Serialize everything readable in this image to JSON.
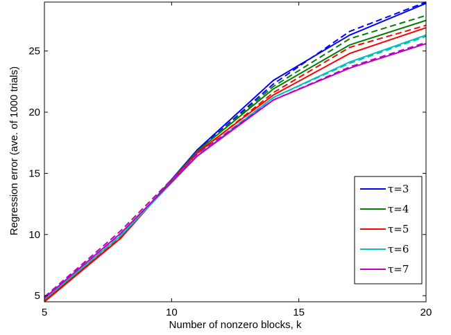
{
  "chart_data": {
    "type": "line",
    "title": "",
    "xlabel": "Number of nonzero blocks, k",
    "ylabel": "Regression error (ave. of 1000 trials)",
    "xlim": [
      5,
      20
    ],
    "ylim": [
      4.5,
      29
    ],
    "xticks": [
      5,
      10,
      15,
      20
    ],
    "yticks": [
      5,
      10,
      15,
      20,
      25
    ],
    "grid": false,
    "legend_position": "bottom-right",
    "x": [
      5,
      8,
      11,
      14,
      17,
      20
    ],
    "series": [
      {
        "name": "τ=3",
        "color": "#0000ff",
        "style": "solid",
        "values": [
          4.5,
          9.7,
          16.9,
          22.6,
          26.3,
          28.9
        ]
      },
      {
        "name": "τ=3",
        "color": "#0000ff",
        "style": "dashed",
        "values": [
          4.6,
          9.8,
          16.8,
          22.3,
          26.6,
          29.0
        ]
      },
      {
        "name": "τ=4",
        "color": "#008000",
        "style": "solid",
        "values": [
          4.6,
          9.7,
          16.8,
          21.9,
          25.5,
          27.5
        ]
      },
      {
        "name": "τ=4",
        "color": "#008000",
        "style": "dashed",
        "values": [
          4.6,
          9.8,
          16.8,
          22.1,
          26.0,
          27.9
        ]
      },
      {
        "name": "τ=5",
        "color": "#ff0000",
        "style": "solid",
        "values": [
          4.5,
          9.7,
          16.7,
          21.4,
          24.8,
          26.9
        ]
      },
      {
        "name": "τ=5",
        "color": "#ff0000",
        "style": "dashed",
        "values": [
          4.6,
          9.8,
          16.6,
          21.6,
          25.3,
          27.1
        ]
      },
      {
        "name": "τ=6",
        "color": "#00bfbf",
        "style": "solid",
        "values": [
          4.7,
          9.9,
          16.4,
          21.2,
          24.1,
          26.3
        ]
      },
      {
        "name": "τ=6",
        "color": "#00bfbf",
        "style": "dashed",
        "values": [
          4.8,
          10.0,
          16.5,
          21.2,
          24.0,
          26.2
        ]
      },
      {
        "name": "τ=7",
        "color": "#bf00bf",
        "style": "solid",
        "values": [
          4.8,
          10.1,
          16.4,
          21.0,
          23.6,
          25.6
        ]
      },
      {
        "name": "τ=7",
        "color": "#bf00bf",
        "style": "dashed",
        "values": [
          4.9,
          10.3,
          16.6,
          21.0,
          23.7,
          25.7
        ]
      }
    ],
    "legend": [
      {
        "label": "τ=3",
        "color": "#0000ff"
      },
      {
        "label": "τ=4",
        "color": "#008000"
      },
      {
        "label": "τ=5",
        "color": "#ff0000"
      },
      {
        "label": "τ=6",
        "color": "#00bfbf"
      },
      {
        "label": "τ=7",
        "color": "#bf00bf"
      }
    ]
  }
}
